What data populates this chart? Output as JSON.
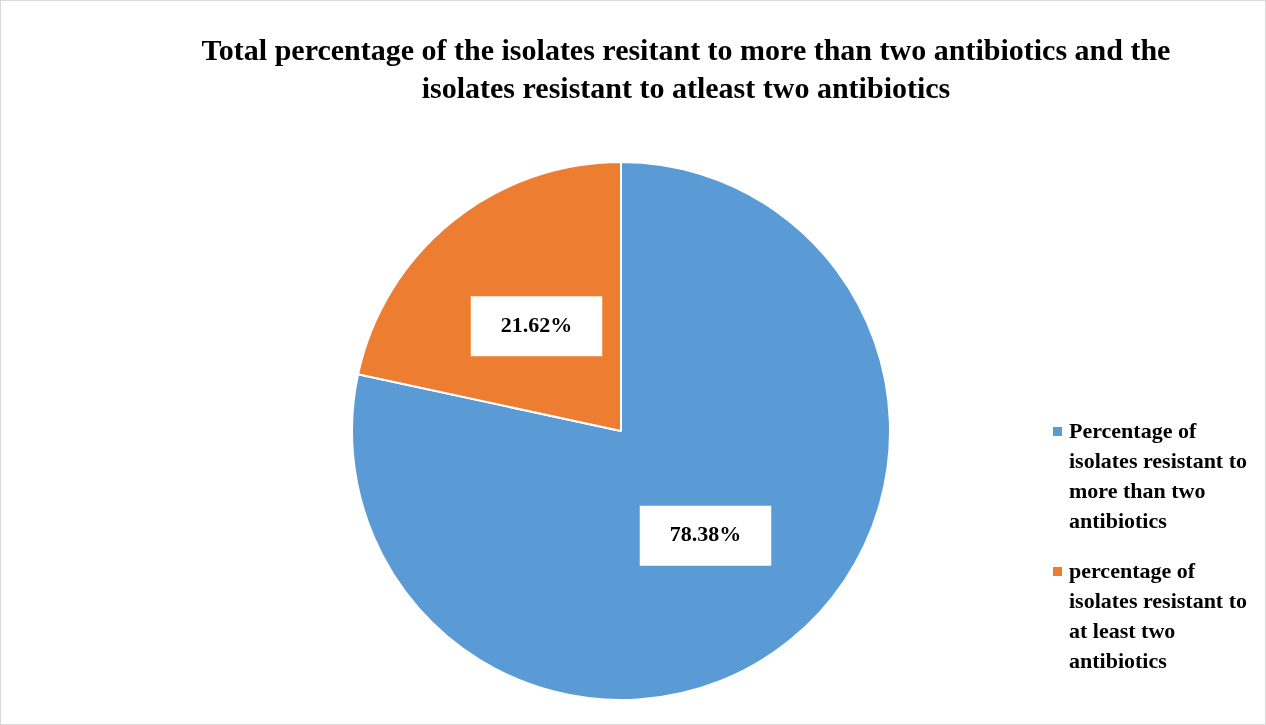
{
  "chart_data": {
    "type": "pie",
    "title": "Total percentage of the isolates resitant to more than two antibiotics and the isolates resistant to atleast two antibiotics",
    "categories": [
      "Percentage of isolates resistant to more than two antibiotics",
      "percentage of isolates resistant to at least two antibiotics"
    ],
    "values": [
      78.38,
      21.62
    ],
    "colors": [
      "#5b9bd5",
      "#ed7d31"
    ],
    "value_labels": [
      "78.38%",
      "21.62%"
    ],
    "legend": "right"
  }
}
